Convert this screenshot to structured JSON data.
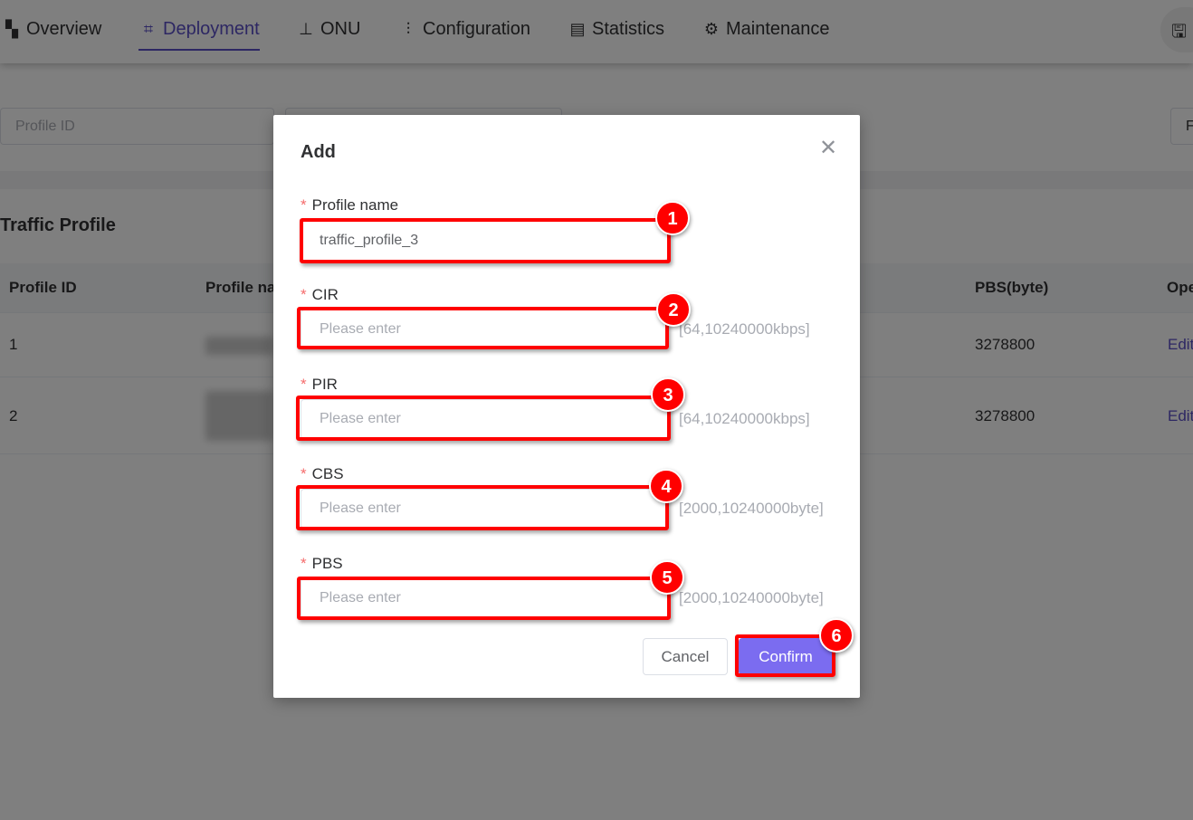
{
  "nav": {
    "tabs": [
      {
        "label": "Overview",
        "icon": "dashboard-icon"
      },
      {
        "label": "Deployment",
        "icon": "deployment-icon",
        "active": true
      },
      {
        "label": "ONU",
        "icon": "router-icon"
      },
      {
        "label": "Configuration",
        "icon": "sliders-icon"
      },
      {
        "label": "Statistics",
        "icon": "window-icon"
      },
      {
        "label": "Maintenance",
        "icon": "gear-icon"
      }
    ],
    "save_icon": "save-icon"
  },
  "filters": {
    "profile_id_placeholder": "Profile ID",
    "right_button": "F"
  },
  "section_title": "Traffic Profile",
  "table": {
    "headers": [
      "Profile ID",
      "Profile na",
      "PBS(byte)",
      "Ope"
    ],
    "rows": [
      {
        "id": "1",
        "pbs": "3278800",
        "op": "Edit"
      },
      {
        "id": "2",
        "pbs": "3278800",
        "op": "Edit"
      }
    ]
  },
  "modal": {
    "title": "Add",
    "fields": [
      {
        "label": "Profile name",
        "value": "traffic_profile_3",
        "placeholder": "",
        "hint": ""
      },
      {
        "label": "CIR",
        "value": "",
        "placeholder": "Please enter",
        "hint": "[64,10240000kbps]"
      },
      {
        "label": "PIR",
        "value": "",
        "placeholder": "Please enter",
        "hint": "[64,10240000kbps]"
      },
      {
        "label": "CBS",
        "value": "",
        "placeholder": "Please enter",
        "hint": "[2000,10240000byte]"
      },
      {
        "label": "PBS",
        "value": "",
        "placeholder": "Please enter",
        "hint": "[2000,10240000byte]"
      }
    ],
    "required_mark": "*",
    "cancel": "Cancel",
    "confirm": "Confirm"
  },
  "annotations": [
    "1",
    "2",
    "3",
    "4",
    "5",
    "6"
  ],
  "colors": {
    "accent": "#5b4fc7",
    "confirm": "#7b6cf0",
    "annotation": "#ff0000"
  }
}
